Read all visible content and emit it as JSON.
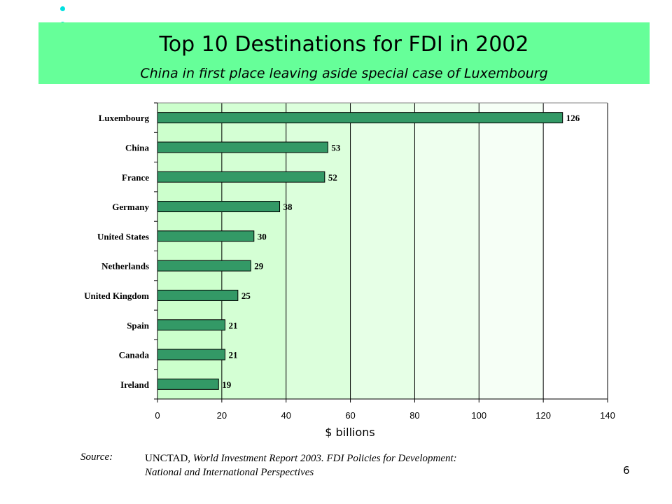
{
  "slide": {
    "title": "Top 10 Destinations for FDI in 2002",
    "subtitle": "China in first place leaving aside special case of Luxembourg",
    "page_number": "6",
    "source_label": "Source:",
    "source_org": "UNCTAD,",
    "source_work": "World Investment Report 2003.  FDI Policies for Development:",
    "source_work2": "National and International Perspectives"
  },
  "colors": {
    "banner": "#66ff99",
    "bar": "#339966",
    "bullet": "#00e0e0"
  },
  "chart_data": {
    "type": "bar",
    "orientation": "horizontal",
    "categories": [
      "Luxembourg",
      "China",
      "France",
      "Germany",
      "United States",
      "Netherlands",
      "United Kingdom",
      "Spain",
      "Canada",
      "Ireland"
    ],
    "values": [
      126,
      53,
      52,
      38,
      30,
      29,
      25,
      21,
      21,
      19
    ],
    "xlabel": "$ billions",
    "xlim": [
      0,
      140
    ],
    "xticks": [
      0,
      20,
      40,
      60,
      80,
      100,
      120,
      140
    ],
    "grid": true
  }
}
